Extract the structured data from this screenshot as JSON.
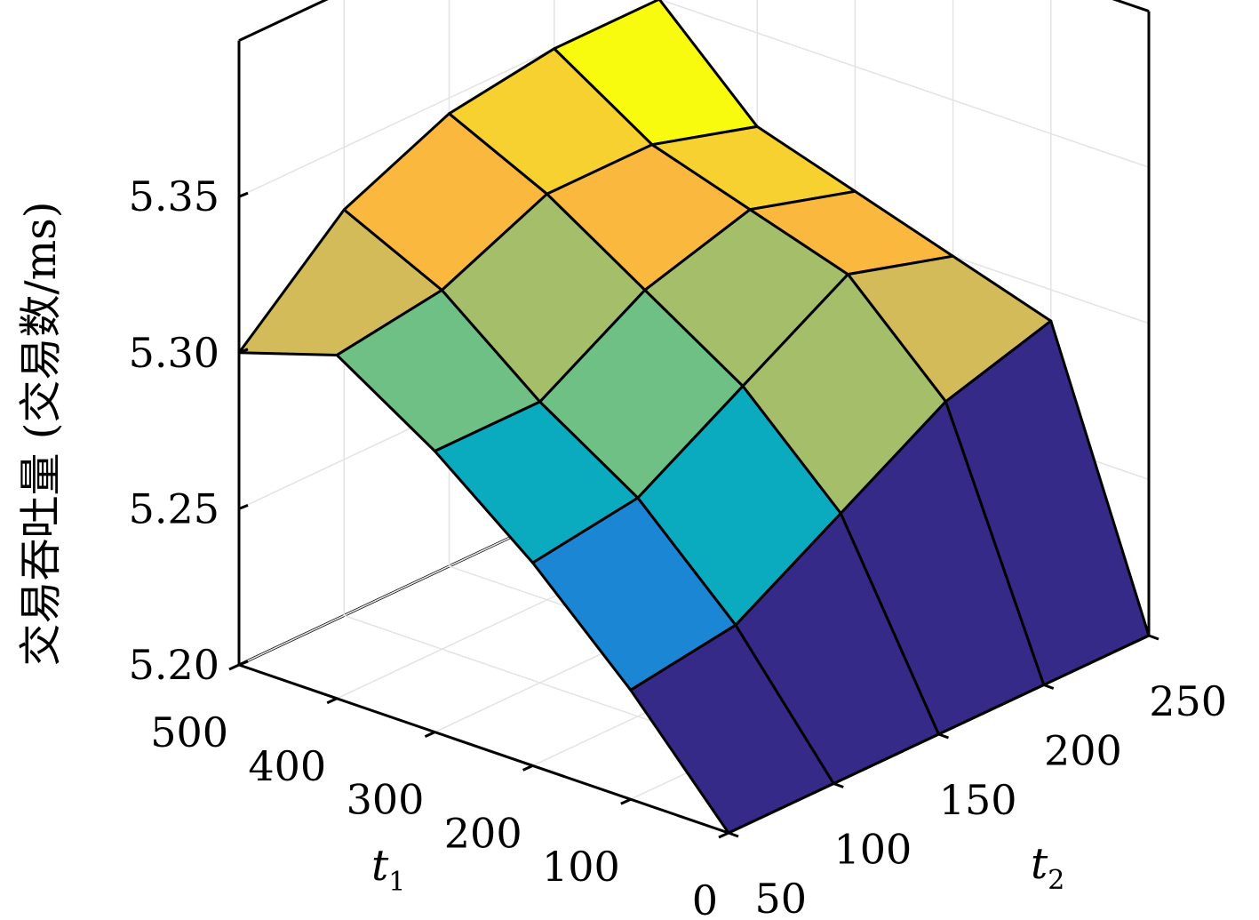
{
  "chart_data": {
    "type": "surface",
    "title": "",
    "zlabel": "交易吞吐量 (交易数/ms)",
    "xlabel": {
      "letter": "t",
      "subscript": "1"
    },
    "ylabel": {
      "letter": "t",
      "subscript": "2"
    },
    "t1": [
      0,
      100,
      200,
      300,
      400,
      500
    ],
    "t2": [
      50,
      100,
      150,
      200,
      250
    ],
    "t1_ticks": [
      "0",
      "100",
      "200",
      "300",
      "400",
      "500"
    ],
    "t2_ticks": [
      "50",
      "100",
      "150",
      "200",
      "250"
    ],
    "z_ticks": [
      "5.20",
      "5.25",
      "5.30",
      "5.35"
    ],
    "zlim": [
      5.2,
      5.4
    ],
    "grid": true,
    "colormap": "parula",
    "z": [
      [
        5.2,
        5.2,
        5.2,
        5.2,
        5.2
      ],
      [
        5.235,
        5.24,
        5.26,
        5.28,
        5.29
      ],
      [
        5.265,
        5.27,
        5.29,
        5.31,
        5.3
      ],
      [
        5.29,
        5.29,
        5.31,
        5.32,
        5.31
      ],
      [
        5.31,
        5.315,
        5.33,
        5.33,
        5.32
      ],
      [
        5.3,
        5.33,
        5.345,
        5.35,
        5.35
      ]
    ],
    "face_colors": [
      [
        "#352a87",
        "#352a87",
        "#352a87",
        "#352a87"
      ],
      [
        "#1a86d4",
        "#0aabbf",
        "#a5be6a",
        "#d4bb5a"
      ],
      [
        "#0aabbf",
        "#6fc085",
        "#a5be6a",
        "#fbb83e"
      ],
      [
        "#6fc085",
        "#a5be6a",
        "#fbb83e",
        "#f7d12f"
      ],
      [
        "#d4bb5a",
        "#fbb83e",
        "#f7d12f",
        "#f9fb0e"
      ]
    ]
  }
}
